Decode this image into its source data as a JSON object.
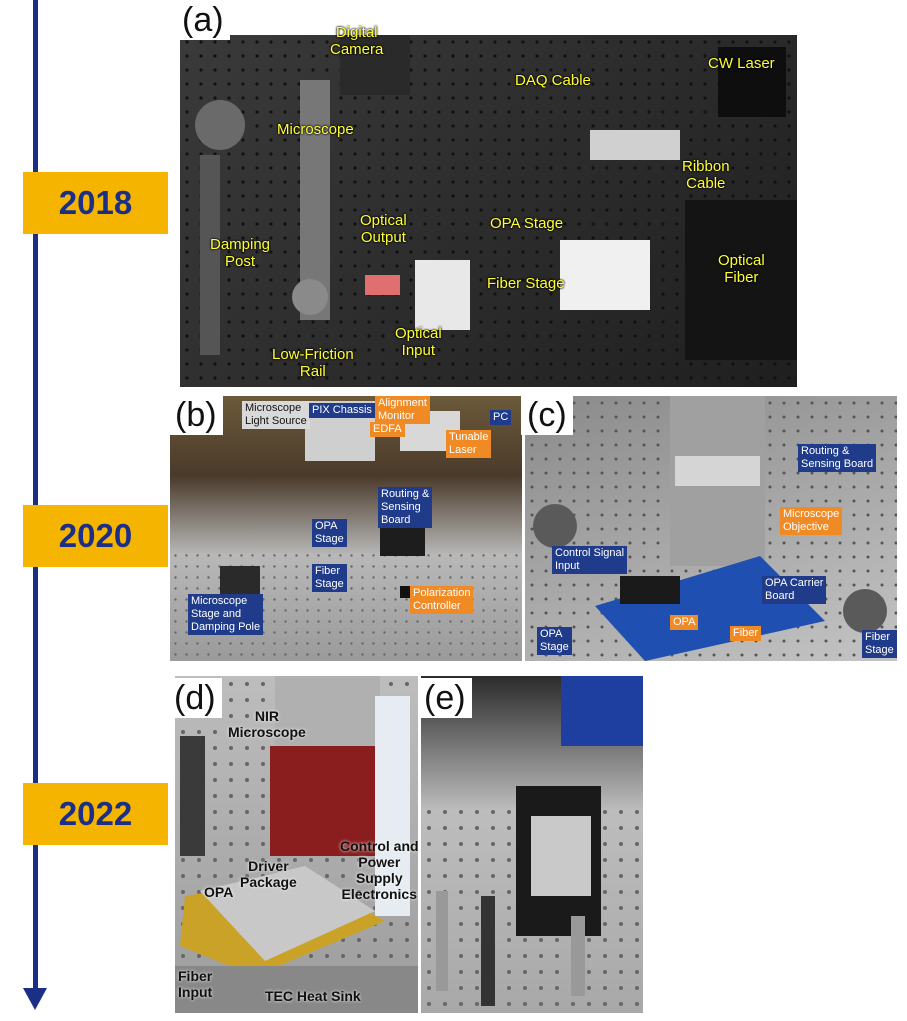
{
  "timeline": {
    "years": [
      "2018",
      "2020",
      "2022"
    ],
    "color": "#1b2f87",
    "badge_color": "#f4b400"
  },
  "panel_a": {
    "letter": "(a)",
    "labels": {
      "digital_camera": "Digital\nCamera",
      "daq_cable": "DAQ Cable",
      "cw_laser": "CW Laser",
      "microscope": "Microscope",
      "ribbon_cable": "Ribbon\nCable",
      "optical_output": "Optical\nOutput",
      "opa_stage": "OPA Stage",
      "damping_post": "Damping\nPost",
      "fiber_stage": "Fiber Stage",
      "optical_fiber": "Optical\nFiber",
      "optical_input": "Optical\nInput",
      "low_friction_rail": "Low-Friction\nRail"
    }
  },
  "panel_b": {
    "letter": "(b)",
    "labels": {
      "microscope_light_source": "Microscope\nLight Source",
      "pix_chassis": "PIX Chassis",
      "alignment_monitor": "Alignment\nMonitor",
      "edfa": "EDFA",
      "tunable_laser": "Tunable\nLaser",
      "pc": "PC",
      "routing_sensing_board": "Routing &\nSensing\nBoard",
      "opa_stage": "OPA\nStage",
      "fiber_stage": "Fiber\nStage",
      "polarization_controller": "Polarization\nController",
      "microscope_stage": "Microscope\nStage and\nDamping Pole"
    }
  },
  "panel_c": {
    "letter": "(c)",
    "labels": {
      "routing_sensing_board": "Routing &\nSensing Board",
      "microscope_objective": "Microscope\nObjective",
      "control_signal_input": "Control Signal\nInput",
      "opa_carrier_board": "OPA Carrier\nBoard",
      "opa": "OPA",
      "fiber": "Fiber",
      "opa_stage": "OPA\nStage",
      "fiber_stage": "Fiber\nStage"
    }
  },
  "panel_d": {
    "letter": "(d)",
    "labels": {
      "nir_microscope": "NIR\nMicroscope",
      "control_power": "Control and\nPower\nSupply\nElectronics",
      "driver_package": "Driver\nPackage",
      "opa": "OPA",
      "fiber_input": "Fiber\nInput",
      "tec_heat_sink": "TEC Heat Sink"
    }
  },
  "panel_e": {
    "letter": "(e)"
  }
}
